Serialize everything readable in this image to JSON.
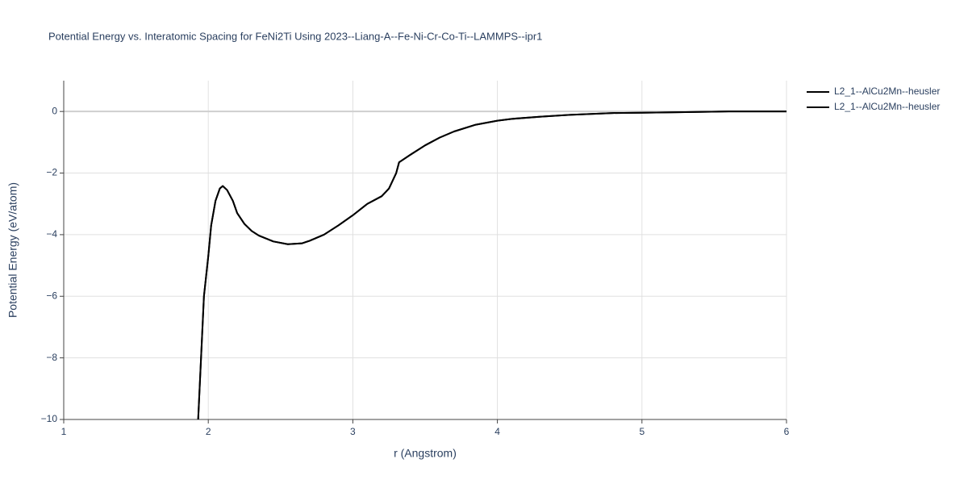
{
  "chart_data": {
    "type": "line",
    "title": "Potential Energy vs. Interatomic Spacing for FeNi2Ti Using 2023--Liang-A--Fe-Ni-Cr-Co-Ti--LAMMPS--ipr1",
    "x_label": "r (Angstrom)",
    "y_label": "Potential Energy (eV/atom)",
    "x": [
      1.93,
      1.95,
      1.97,
      2.0,
      2.02,
      2.05,
      2.08,
      2.1,
      2.13,
      2.17,
      2.2,
      2.25,
      2.3,
      2.35,
      2.45,
      2.55,
      2.65,
      2.7,
      2.8,
      2.9,
      3.0,
      3.1,
      3.2,
      3.25,
      3.3,
      3.32,
      3.4,
      3.5,
      3.6,
      3.7,
      3.85,
      4.0,
      4.1,
      4.3,
      4.5,
      4.8,
      5.0,
      5.3,
      5.6,
      6.0
    ],
    "series": [
      {
        "name": "L2_1--AlCu2Mn--heusler",
        "color": "#000000",
        "values": [
          -10,
          -8,
          -6,
          -4.7,
          -3.7,
          -2.9,
          -2.5,
          -2.42,
          -2.55,
          -2.9,
          -3.3,
          -3.65,
          -3.88,
          -4.03,
          -4.22,
          -4.31,
          -4.28,
          -4.2,
          -4.0,
          -3.7,
          -3.37,
          -3.0,
          -2.75,
          -2.5,
          -2.0,
          -1.65,
          -1.4,
          -1.1,
          -0.85,
          -0.65,
          -0.43,
          -0.3,
          -0.24,
          -0.17,
          -0.11,
          -0.05,
          -0.04,
          -0.02,
          0,
          0
        ]
      },
      {
        "name": "L2_1--AlCu2Mn--heusler",
        "color": "#000000",
        "values": [
          -10,
          -8,
          -6,
          -4.7,
          -3.7,
          -2.9,
          -2.5,
          -2.42,
          -2.55,
          -2.9,
          -3.3,
          -3.65,
          -3.88,
          -4.03,
          -4.22,
          -4.31,
          -4.28,
          -4.2,
          -4.0,
          -3.7,
          -3.37,
          -3.0,
          -2.75,
          -2.5,
          -2.0,
          -1.65,
          -1.4,
          -1.1,
          -0.85,
          -0.65,
          -0.43,
          -0.3,
          -0.24,
          -0.17,
          -0.11,
          -0.05,
          -0.04,
          -0.02,
          0,
          0
        ]
      }
    ],
    "xlim": [
      1,
      6
    ],
    "xticks": [
      1,
      2,
      3,
      4,
      5,
      6
    ],
    "ylim": [
      -10,
      1
    ],
    "yticks": [
      {
        "value": -10,
        "label": "−10"
      },
      {
        "value": -8,
        "label": "−8"
      },
      {
        "value": -6,
        "label": "−6"
      },
      {
        "value": -4,
        "label": "−4"
      },
      {
        "value": -2,
        "label": "−2"
      },
      0
    ],
    "grid": true,
    "legend": "right"
  }
}
